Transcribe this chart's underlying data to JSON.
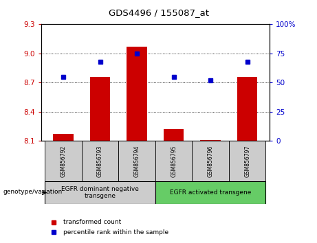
{
  "title": "GDS4496 / 155087_at",
  "samples": [
    "GSM856792",
    "GSM856793",
    "GSM856794",
    "GSM856795",
    "GSM856796",
    "GSM856797"
  ],
  "bar_values": [
    8.17,
    8.76,
    9.07,
    8.22,
    8.11,
    8.76
  ],
  "percentile_values": [
    55,
    68,
    75,
    55,
    52,
    68
  ],
  "ylim_left": [
    8.1,
    9.3
  ],
  "ylim_right": [
    0,
    100
  ],
  "yticks_left": [
    8.1,
    8.4,
    8.7,
    9.0,
    9.3
  ],
  "yticks_right": [
    0,
    25,
    50,
    75,
    100
  ],
  "bar_color": "#cc0000",
  "point_color": "#0000cc",
  "grid_color": "#000000",
  "group1_label": "EGFR dominant negative\ntransgene",
  "group2_label": "EGFR activated transgene",
  "group1_color": "#cccccc",
  "group2_color": "#66cc66",
  "group1_samples": [
    0,
    1,
    2
  ],
  "group2_samples": [
    3,
    4,
    5
  ],
  "legend_bar_label": "transformed count",
  "legend_point_label": "percentile rank within the sample",
  "genotype_label": "genotype/variation"
}
